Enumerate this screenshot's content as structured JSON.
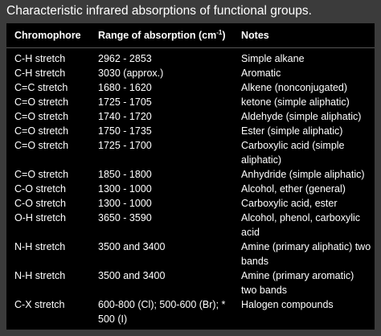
{
  "title": "Characteristic infrared absorptions of functional groups.",
  "table": {
    "header": [
      "Chromophore",
      {
        "text": "Range of absorption (cm",
        "sup": "-1",
        "after": ")"
      },
      "Notes"
    ],
    "rows": [
      [
        "C-H stretch",
        "2962 - 2853",
        "Simple alkane"
      ],
      [
        "C-H stretch",
        "3030 (approx.)",
        "Aromatic"
      ],
      [
        "C=C stretch",
        "1680 - 1620",
        "Alkene (nonconjugated)"
      ],
      [
        "C=O stretch",
        "1725 - 1705",
        "ketone (simple aliphatic)"
      ],
      [
        "C=O stretch",
        "1740 - 1720",
        "Aldehyde (simple aliphatic)"
      ],
      [
        "C=O stretch",
        "1750 - 1735",
        "Ester (simple aliphatic)"
      ],
      [
        "C=O stretch",
        "1725 - 1700",
        "Carboxylic acid (simple aliphatic)"
      ],
      [
        "C=O stretch",
        "1850 - 1800",
        "Anhydride (simple aliphatic)"
      ],
      [
        "C-O stretch",
        "1300 - 1000",
        "Alcohol, ether (general)"
      ],
      [
        "C-O stretch",
        "1300 - 1000",
        "Carboxylic acid, ester"
      ],
      [
        "O-H stretch",
        "3650 - 3590",
        "Alcohol, phenol, carboxylic acid"
      ],
      [
        "N-H stretch",
        "3500 and 3400",
        "Amine (primary aliphatic) two bands"
      ],
      [
        "N-H stretch",
        "3500 and 3400",
        "Amine (primary aromatic) two bands"
      ],
      [
        "C-X stretch",
        "600-800 (Cl); 500-600 (Br); * 500 (I)",
        "Halogen compounds"
      ]
    ]
  }
}
